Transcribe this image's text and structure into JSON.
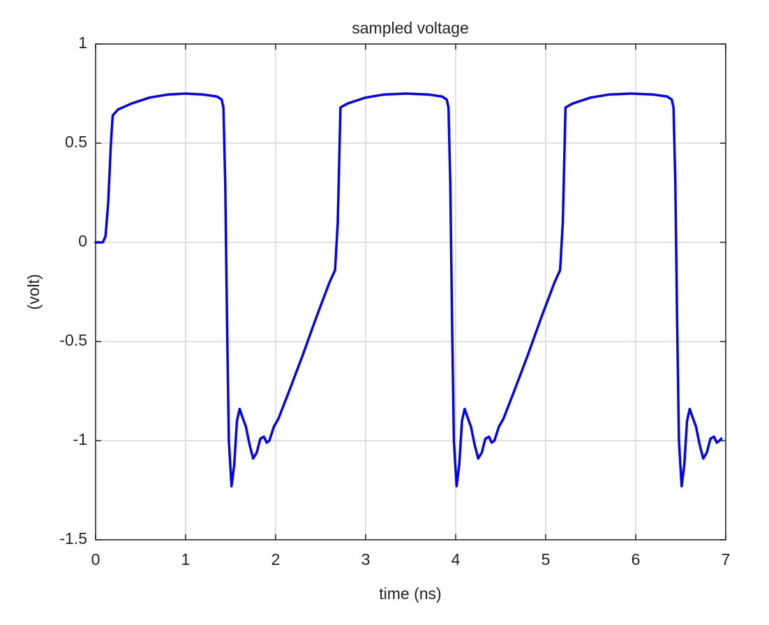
{
  "chart_data": {
    "type": "line",
    "title": "sampled voltage",
    "xlabel": "time (ns)",
    "ylabel": "(volt)",
    "x": [
      0,
      0.08,
      0.11,
      0.14,
      0.17,
      0.19,
      0.25,
      0.4,
      0.6,
      0.8,
      1.0,
      1.2,
      1.35,
      1.4,
      1.42,
      1.44,
      1.46,
      1.48,
      1.51,
      1.54,
      1.57,
      1.6,
      1.63,
      1.67,
      1.71,
      1.75,
      1.79,
      1.83,
      1.87,
      1.9,
      1.93,
      1.98,
      2.03,
      2.15,
      2.3,
      2.45,
      2.6,
      2.66,
      2.69,
      2.72,
      2.8,
      3.0,
      3.2,
      3.45,
      3.7,
      3.85,
      3.9,
      3.92,
      3.94,
      3.96,
      3.98,
      4.01,
      4.04,
      4.07,
      4.1,
      4.13,
      4.17,
      4.21,
      4.25,
      4.29,
      4.33,
      4.37,
      4.4,
      4.43,
      4.48,
      4.53,
      4.65,
      4.8,
      4.95,
      5.1,
      5.16,
      5.19,
      5.22,
      5.3,
      5.5,
      5.7,
      5.95,
      6.2,
      6.35,
      6.4,
      6.42,
      6.44,
      6.46,
      6.48,
      6.51,
      6.54,
      6.57,
      6.6,
      6.63,
      6.67,
      6.71,
      6.75,
      6.79,
      6.83,
      6.87,
      6.9,
      6.93,
      6.95
    ],
    "values": [
      0,
      0,
      0.03,
      0.2,
      0.5,
      0.64,
      0.67,
      0.7,
      0.73,
      0.745,
      0.75,
      0.745,
      0.735,
      0.72,
      0.68,
      0.3,
      -0.4,
      -1.0,
      -1.23,
      -1.12,
      -0.9,
      -0.84,
      -0.88,
      -0.93,
      -1.02,
      -1.09,
      -1.06,
      -0.99,
      -0.98,
      -1.01,
      -1.0,
      -0.93,
      -0.89,
      -0.75,
      -0.57,
      -0.38,
      -0.2,
      -0.14,
      0.1,
      0.68,
      0.7,
      0.73,
      0.745,
      0.75,
      0.745,
      0.735,
      0.72,
      0.68,
      0.3,
      -0.4,
      -1.0,
      -1.23,
      -1.12,
      -0.9,
      -0.84,
      -0.88,
      -0.93,
      -1.02,
      -1.09,
      -1.06,
      -0.99,
      -0.98,
      -1.01,
      -1.0,
      -0.93,
      -0.89,
      -0.75,
      -0.57,
      -0.38,
      -0.2,
      -0.14,
      0.1,
      0.68,
      0.7,
      0.73,
      0.745,
      0.75,
      0.745,
      0.735,
      0.72,
      0.68,
      0.3,
      -0.4,
      -1.0,
      -1.23,
      -1.12,
      -0.9,
      -0.84,
      -0.88,
      -0.93,
      -1.02,
      -1.09,
      -1.06,
      -0.99,
      -0.98,
      -1.01,
      -1.0,
      -0.99
    ],
    "color": "#0000ff",
    "xlim": [
      0,
      7
    ],
    "xticks": [
      0,
      1,
      2,
      3,
      4,
      5,
      6,
      7
    ],
    "ylim": [
      -1.5,
      1
    ],
    "yticks": [
      -1.5,
      -1,
      -0.5,
      0,
      0.5,
      1
    ],
    "grid": true
  }
}
